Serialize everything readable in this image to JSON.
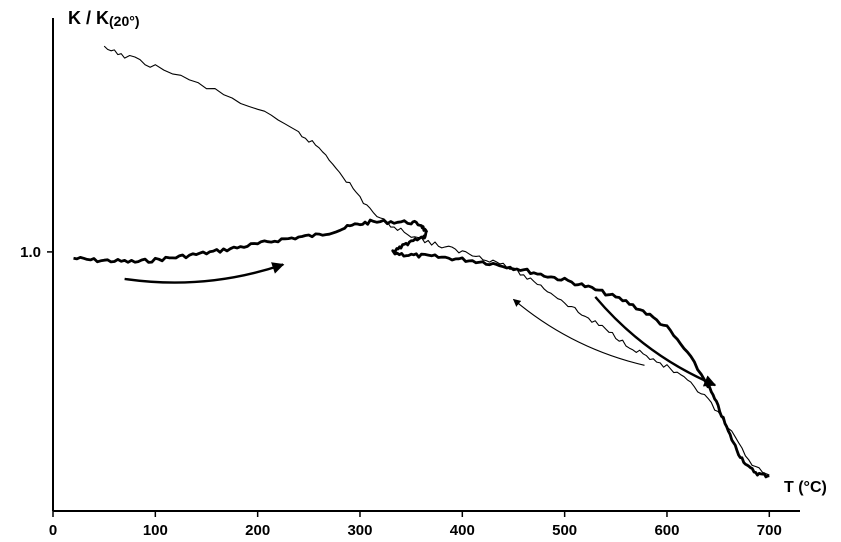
{
  "chart_data": {
    "type": "line",
    "ylabel_main": "K / K",
    "ylabel_sub": "(20°)",
    "xlabel": "T (°C)",
    "xlim": [
      0,
      730
    ],
    "ylim": [
      0.28,
      1.65
    ],
    "x_ticks": [
      0,
      100,
      200,
      300,
      400,
      500,
      600,
      700
    ],
    "y_ticks": [
      {
        "value": 1.0,
        "label": "1.0"
      }
    ],
    "grid": false,
    "series": [
      {
        "style": "thick",
        "x": [
          20,
          40,
          60,
          80,
          100,
          120,
          140,
          160,
          180,
          200,
          220,
          240,
          260,
          280,
          295,
          310,
          330,
          350,
          360,
          365,
          362,
          350,
          340,
          332,
          345,
          360,
          380,
          400,
          420,
          440,
          460,
          480,
          500,
          520,
          540,
          560,
          580,
          600,
          620,
          640,
          650,
          660,
          670,
          680,
          690,
          700
        ],
        "y": [
          0.982,
          0.977,
          0.975,
          0.972,
          0.978,
          0.985,
          0.993,
          1.002,
          1.012,
          1.022,
          1.033,
          1.041,
          1.047,
          1.062,
          1.075,
          1.083,
          1.084,
          1.082,
          1.075,
          1.052,
          1.038,
          1.028,
          1.012,
          0.998,
          0.992,
          0.989,
          0.985,
          0.979,
          0.972,
          0.962,
          0.95,
          0.935,
          0.922,
          0.905,
          0.885,
          0.862,
          0.83,
          0.79,
          0.72,
          0.63,
          0.57,
          0.5,
          0.44,
          0.4,
          0.382,
          0.378
        ]
      },
      {
        "style": "thin",
        "x": [
          50,
          70,
          100,
          150,
          200,
          240,
          260,
          280,
          300,
          320,
          340,
          360,
          380,
          400,
          420,
          440,
          460,
          480,
          500,
          520,
          540,
          560,
          580,
          600,
          620,
          640,
          660,
          680,
          700
        ],
        "y": [
          1.565,
          1.545,
          1.515,
          1.458,
          1.395,
          1.33,
          1.29,
          1.225,
          1.15,
          1.09,
          1.06,
          1.035,
          1.015,
          1.0,
          0.985,
          0.965,
          0.935,
          0.9,
          0.86,
          0.82,
          0.785,
          0.745,
          0.71,
          0.68,
          0.64,
          0.59,
          0.51,
          0.42,
          0.38
        ]
      }
    ],
    "annotations": [
      {
        "type": "arrow",
        "weight": "thick",
        "from": [
          70,
          0.925
        ],
        "to": [
          225,
          0.965
        ]
      },
      {
        "type": "arrow",
        "weight": "thick",
        "from": [
          530,
          0.875
        ],
        "to": [
          647,
          0.63
        ]
      },
      {
        "type": "arrow",
        "weight": "thin",
        "from": [
          578,
          0.685
        ],
        "to": [
          450,
          0.868
        ]
      }
    ]
  }
}
